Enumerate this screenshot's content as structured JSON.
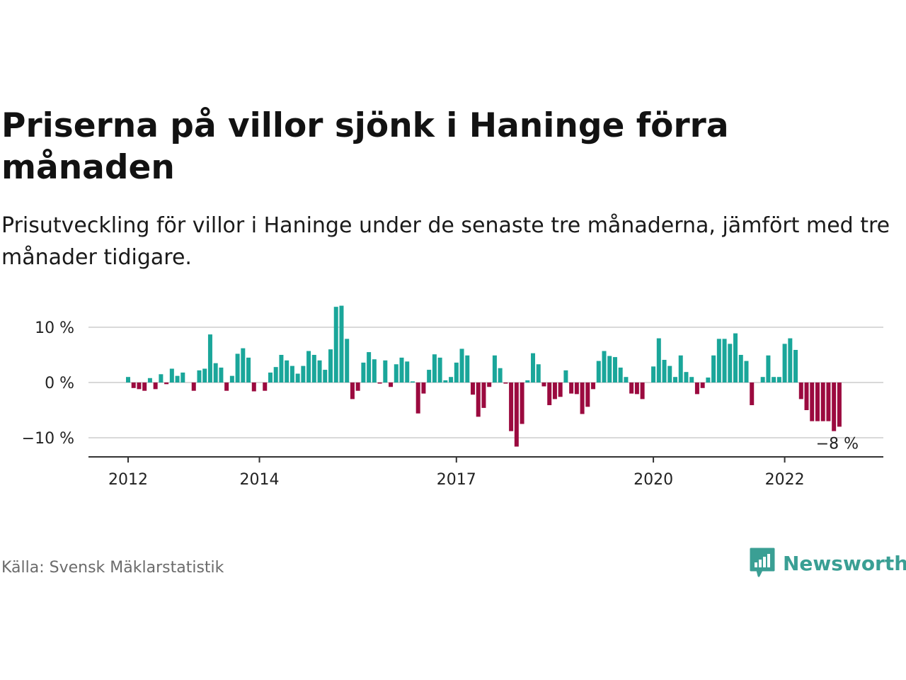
{
  "title": "Priserna på villor sjönk i Haninge förra månaden",
  "subtitle": "Prisutveckling för villor i Haninge under de senaste tre månaderna, jämfört med tre månader tidigare.",
  "source": "Källa: Svensk Mäklarstatistik",
  "brand": {
    "name": "Newsworthy",
    "icon": "newsworthy-logo-icon"
  },
  "colors": {
    "positive": "#1aa69a",
    "negative": "#9b0a3f",
    "grid": "#d9d9d9",
    "axis": "#333333"
  },
  "chart_data": {
    "type": "bar",
    "x_start": "2012-01",
    "x_ticks": [
      "2012",
      "2014",
      "2017",
      "2020",
      "2022"
    ],
    "y_ticks": [
      "10 %",
      "0 %",
      "−10 %"
    ],
    "ylim": [
      -13,
      15
    ],
    "unit": "%",
    "grid": true,
    "last_label": "−8 %",
    "values": [
      1,
      -1,
      -1.2,
      -1.5,
      0.8,
      -1.2,
      1.5,
      -0.3,
      2.5,
      1.2,
      1.8,
      0,
      -1.5,
      2.2,
      2.5,
      8.7,
      3.5,
      2.7,
      -1.5,
      1.2,
      5.2,
      6.2,
      4.5,
      -1.6,
      0,
      -1.5,
      1.8,
      2.8,
      5,
      4,
      3,
      1.6,
      3,
      5.7,
      5,
      4,
      2.3,
      6,
      13.7,
      13.9,
      7.9,
      -3,
      -1.5,
      3.6,
      5.5,
      4.2,
      -0.2,
      4,
      -0.8,
      3.3,
      4.5,
      3.8,
      0.2,
      -5.6,
      -2,
      2.3,
      5.1,
      4.5,
      0.4,
      1,
      3.6,
      6.1,
      4.9,
      -2.2,
      -6.2,
      -4.6,
      -0.8,
      4.9,
      2.6,
      -0.2,
      -8.8,
      -11.6,
      -7.5,
      0.4,
      5.3,
      3.3,
      -0.7,
      -4.1,
      -3,
      -2.6,
      2.2,
      -2,
      -2.1,
      -5.7,
      -4.4,
      -1.2,
      3.9,
      5.7,
      4.8,
      4.6,
      2.7,
      1,
      -2,
      -2.1,
      -3,
      0,
      2.9,
      8,
      4.1,
      3,
      1,
      4.9,
      1.9,
      1,
      -2.1,
      -1,
      0.9,
      4.9,
      7.9,
      7.9,
      7,
      8.9,
      5,
      3.9,
      -4.1,
      0,
      1,
      4.9,
      1,
      1,
      7,
      8,
      5.9,
      -3,
      -5,
      -7,
      -7,
      -7,
      -7,
      -8.8,
      -8
    ]
  }
}
